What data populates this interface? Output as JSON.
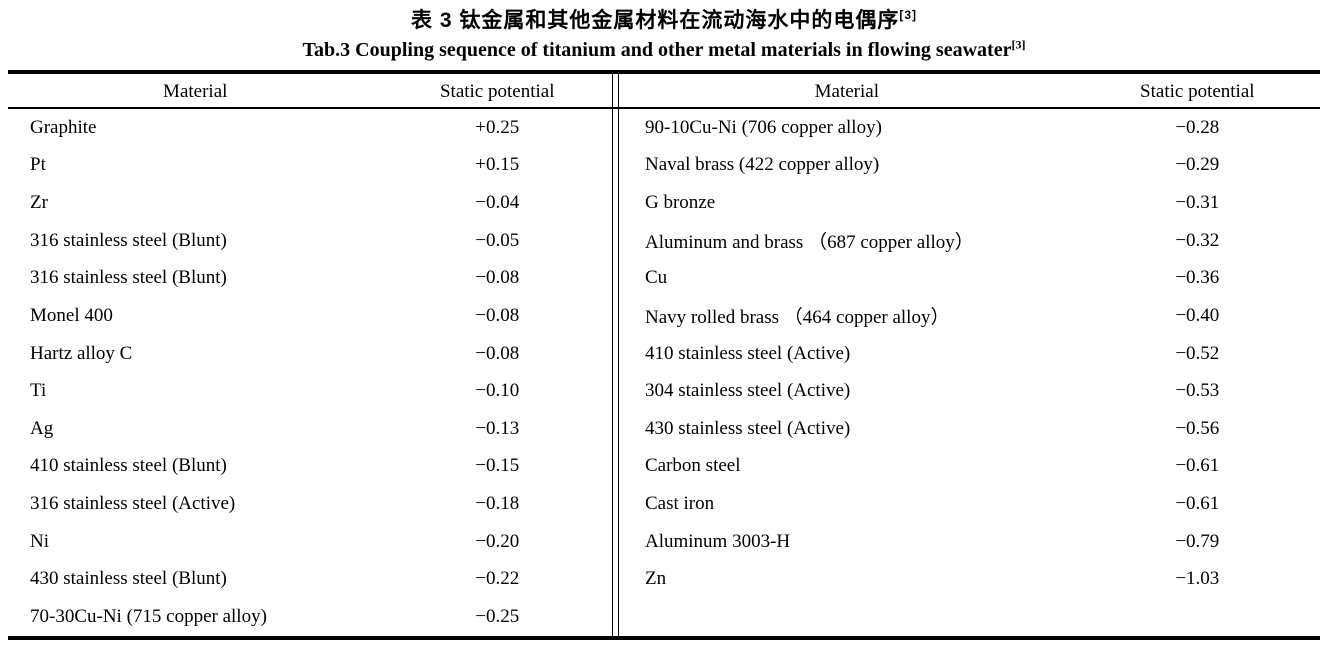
{
  "caption": {
    "zh": "表 3  钛金属和其他金属材料在流动海水中的电偶序",
    "zh_sup": "[3]",
    "en": "Tab.3 Coupling sequence of titanium and other metal materials in flowing seawater",
    "en_sup": "[3]"
  },
  "table": {
    "left": {
      "headers": {
        "material": "Material",
        "potential": "Static potential"
      },
      "rows": [
        [
          "Graphite",
          "+0.25"
        ],
        [
          "Pt",
          "+0.15"
        ],
        [
          "Zr",
          "−0.04"
        ],
        [
          "316 stainless steel (Blunt)",
          "−0.05"
        ],
        [
          "316 stainless steel (Blunt)",
          "−0.08"
        ],
        [
          "Monel 400",
          "−0.08"
        ],
        [
          "Hartz alloy C",
          "−0.08"
        ],
        [
          "Ti",
          "−0.10"
        ],
        [
          "Ag",
          "−0.13"
        ],
        [
          "410 stainless steel (Blunt)",
          "−0.15"
        ],
        [
          "316 stainless steel (Active)",
          "−0.18"
        ],
        [
          "Ni",
          "−0.20"
        ],
        [
          "430 stainless steel (Blunt)",
          "−0.22"
        ],
        [
          "70-30Cu-Ni (715 copper alloy)",
          "−0.25"
        ]
      ]
    },
    "right": {
      "headers": {
        "material": "Material",
        "potential": "Static potential"
      },
      "rows": [
        [
          "90-10Cu-Ni (706 copper alloy)",
          "−0.28"
        ],
        [
          "Naval brass (422 copper alloy)",
          "−0.29"
        ],
        [
          "G bronze",
          "−0.31"
        ],
        [
          "Aluminum and brass （687 copper alloy）",
          "−0.32"
        ],
        [
          "Cu",
          "−0.36"
        ],
        [
          "Navy rolled brass （464 copper alloy）",
          "−0.40"
        ],
        [
          "410 stainless steel (Active)",
          "−0.52"
        ],
        [
          "304 stainless steel (Active)",
          "−0.53"
        ],
        [
          "430 stainless steel (Active)",
          "−0.56"
        ],
        [
          "Carbon steel",
          "−0.61"
        ],
        [
          "Cast iron",
          "−0.61"
        ],
        [
          "Aluminum 3003-H",
          "−0.79"
        ],
        [
          "Zn",
          "−1.03"
        ]
      ]
    }
  }
}
